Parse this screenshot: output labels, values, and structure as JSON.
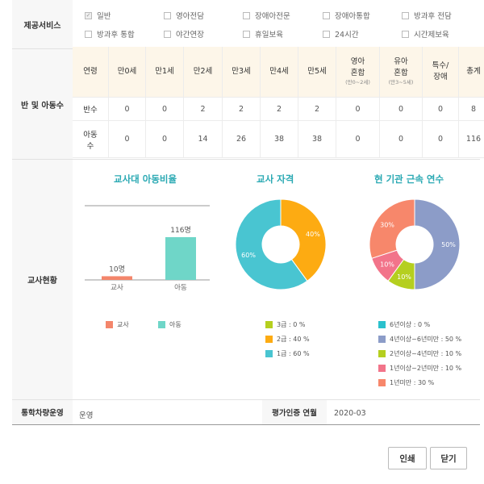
{
  "services": {
    "label": "제공서비스",
    "items": [
      {
        "label": "일반",
        "checked": true
      },
      {
        "label": "영아전담",
        "checked": false
      },
      {
        "label": "장애아전문",
        "checked": false
      },
      {
        "label": "장애아통합",
        "checked": false
      },
      {
        "label": "방과후 전담",
        "checked": false
      },
      {
        "label": "방과후 통합",
        "checked": false
      },
      {
        "label": "야간연장",
        "checked": false
      },
      {
        "label": "휴일보육",
        "checked": false
      },
      {
        "label": "24시간",
        "checked": false
      },
      {
        "label": "시간제보육",
        "checked": false
      }
    ],
    "check_glyph": "✓"
  },
  "classes": {
    "label": "반 및 아동수",
    "headers": [
      {
        "main": "연령",
        "sub": ""
      },
      {
        "main": "만0세",
        "sub": ""
      },
      {
        "main": "만1세",
        "sub": ""
      },
      {
        "main": "만2세",
        "sub": ""
      },
      {
        "main": "만3세",
        "sub": ""
      },
      {
        "main": "만4세",
        "sub": ""
      },
      {
        "main": "만5세",
        "sub": ""
      },
      {
        "main": "영아\n혼합",
        "sub": "(만0~2세)"
      },
      {
        "main": "유아\n혼합",
        "sub": "(만3~5세)"
      },
      {
        "main": "특수/\n장애",
        "sub": ""
      },
      {
        "main": "총계",
        "sub": ""
      }
    ],
    "rows": [
      {
        "label": "반수",
        "values": [
          "0",
          "0",
          "2",
          "2",
          "2",
          "2",
          "0",
          "0",
          "0",
          "8"
        ]
      },
      {
        "label": "아동\n수",
        "values": [
          "0",
          "0",
          "14",
          "26",
          "38",
          "38",
          "0",
          "0",
          "0",
          "116"
        ]
      }
    ]
  },
  "teachers": {
    "label": "교사현황",
    "ratio_chart": {
      "title": "교사대 아동비율",
      "bars": [
        {
          "name": "교사",
          "value": 10,
          "label": "10명",
          "color": "#f4866b"
        },
        {
          "name": "아동",
          "value": 116,
          "label": "116명",
          "color": "#6fd6c8"
        }
      ],
      "legend": [
        "교사",
        "아동"
      ]
    },
    "qual_chart": {
      "title": "교사 자격",
      "slices": [
        {
          "name": "3급 : 0 %",
          "value": 0,
          "color": "#b5cf1f",
          "label": ""
        },
        {
          "name": "2급 : 40 %",
          "value": 40,
          "color": "#fdab12",
          "label": "40%"
        },
        {
          "name": "1급 : 60 %",
          "value": 60,
          "color": "#49c5d1",
          "label": "60%"
        }
      ]
    },
    "tenure_chart": {
      "title": "현 기관 근속 연수",
      "slices": [
        {
          "name": "6년이상 : 0 %",
          "value": 0,
          "color": "#2bc1cd",
          "label": ""
        },
        {
          "name": "4년이상~6년미만 : 50 %",
          "value": 50,
          "color": "#8c9cc8",
          "label": "50%"
        },
        {
          "name": "2년이상~4년미만 : 10 %",
          "value": 10,
          "color": "#b5cf1f",
          "label": "10%"
        },
        {
          "name": "1년이상~2년미만 : 10 %",
          "value": 10,
          "color": "#f2748a",
          "label": "10%"
        },
        {
          "name": "1년미만 : 30 %",
          "value": 30,
          "color": "#f7876b",
          "label": "30%"
        }
      ]
    }
  },
  "bottom": {
    "vehicle_label": "통학차량운영",
    "vehicle_value": "운영",
    "cert_label": "평가인증 연월",
    "cert_value": "2020-03"
  },
  "buttons": {
    "print": "인쇄",
    "close": "닫기"
  }
}
